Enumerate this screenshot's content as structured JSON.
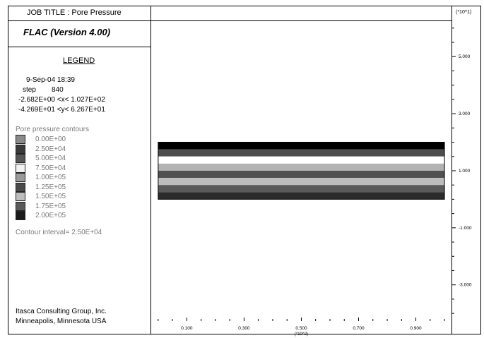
{
  "header": {
    "job_title": "JOB TITLE : Pore Pressure",
    "right_scale": "(*10^1)"
  },
  "program": {
    "name": "FLAC (Version 4.00)"
  },
  "legend": {
    "heading": "LEGEND",
    "date": "9-Sep-04  18:39",
    "step_label": "step",
    "step_value": "840",
    "x_range": "-2.682E+00 <x<  1.027E+02",
    "y_range": "-4.269E+01 <y<  6.267E+01",
    "contours_title": "Pore pressure contours",
    "contours": [
      {
        "label": "0.00E+00",
        "color": "#8a8a8a"
      },
      {
        "label": "2.50E+04",
        "color": "#3a3a3a"
      },
      {
        "label": "5.00E+04",
        "color": "#555555"
      },
      {
        "label": "7.50E+04",
        "color": "#f2f2f2"
      },
      {
        "label": "1.00E+05",
        "color": "#9a9a9a"
      },
      {
        "label": "1.25E+05",
        "color": "#4a4a4a"
      },
      {
        "label": "1.50E+05",
        "color": "#bdbdbd"
      },
      {
        "label": "1.75E+05",
        "color": "#5a5a5a"
      },
      {
        "label": "2.00E+05",
        "color": "#1a1a1a"
      }
    ],
    "interval_text": "Contour interval=  2.50E+04"
  },
  "footer": {
    "company": "Itasca Consulting Group, Inc.",
    "location": "Minneapolis, Minnesota  USA"
  },
  "chart_data": {
    "type": "heatmap",
    "x_ticks": [
      "0.100",
      "0.300",
      "0.500",
      "0.700",
      "0.900"
    ],
    "x_tick_values": [
      0.1,
      0.3,
      0.5,
      0.7,
      0.9
    ],
    "x_scale": "(*10^2)",
    "y_ticks": [
      "5.000",
      "3.000",
      "1.000",
      "-1.000",
      "-3.000"
    ],
    "y_tick_values": [
      5.0,
      3.0,
      1.0,
      -1.0,
      -3.0
    ],
    "xlim": [
      -0.02682,
      1.027
    ],
    "ylim": [
      -4.269,
      6.267
    ],
    "bands": [
      {
        "y_top": 2.0,
        "y_bottom": 1.75,
        "color": "#000000"
      },
      {
        "y_top": 1.75,
        "y_bottom": 1.5,
        "color": "#4d4d4d"
      },
      {
        "y_top": 1.5,
        "y_bottom": 1.25,
        "color": "#ffffff"
      },
      {
        "y_top": 1.25,
        "y_bottom": 1.0,
        "color": "#b3b3b3"
      },
      {
        "y_top": 1.0,
        "y_bottom": 0.75,
        "color": "#505050"
      },
      {
        "y_top": 0.75,
        "y_bottom": 0.5,
        "color": "#bdbdbd"
      },
      {
        "y_top": 0.5,
        "y_bottom": 0.25,
        "color": "#5a5a5a"
      },
      {
        "y_top": 0.25,
        "y_bottom": 0.0,
        "color": "#2b2b2b"
      }
    ],
    "band_x_range": [
      0.0,
      1.0
    ]
  }
}
